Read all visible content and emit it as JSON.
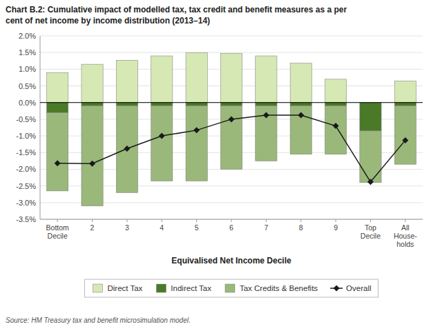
{
  "chart_data": {
    "type": "bar",
    "title": "Chart B.2: Cumulative impact of modelled tax, tax credit and benefit measures as a per\ncent of net income by income distribution (2013–14)",
    "x_label": "Equivalised Net Income Decile",
    "source": "Source: HM Treasury tax and benefit microsimulation model.",
    "categories": [
      "Bottom\nDecile",
      "2",
      "3",
      "4",
      "5",
      "6",
      "7",
      "8",
      "9",
      "Top\nDecile",
      "All\nHouse-\nholds"
    ],
    "stacked": true,
    "grid": true,
    "legend": "bottom",
    "ylim": [
      -3.5,
      2.0
    ],
    "yticks": [
      {
        "value": -3.5,
        "label": "-3.5%"
      },
      {
        "value": -3.0,
        "label": "-3.0%"
      },
      {
        "value": -2.5,
        "label": "-2.5%"
      },
      {
        "value": -2.0,
        "label": "-2.0%"
      },
      {
        "value": -1.5,
        "label": "-1.5%"
      },
      {
        "value": -1.0,
        "label": "-1.0%"
      },
      {
        "value": -0.5,
        "label": "-0.5%"
      },
      {
        "value": 0.0,
        "label": "0.0%"
      },
      {
        "value": 0.5,
        "label": "0.5%"
      },
      {
        "value": 1.0,
        "label": "1.0%"
      },
      {
        "value": 1.5,
        "label": "1.5%"
      },
      {
        "value": 2.0,
        "label": "2.0%"
      }
    ],
    "series": [
      {
        "name": "Direct Tax",
        "type": "bar",
        "color": "#d6e8b4",
        "values": [
          0.9,
          1.15,
          1.27,
          1.4,
          1.5,
          1.47,
          1.4,
          1.18,
          0.7,
          0.0,
          0.65
        ]
      },
      {
        "name": "Indirect Tax",
        "type": "bar",
        "color": "#4a7a28",
        "values": [
          -0.3,
          -0.1,
          -0.1,
          -0.1,
          -0.1,
          -0.1,
          -0.1,
          -0.1,
          -0.1,
          -0.85,
          -0.1
        ]
      },
      {
        "name": "Tax Credits & Benefits",
        "type": "bar",
        "color": "#9ab87a",
        "values": [
          -2.35,
          -3.0,
          -2.6,
          -2.25,
          -2.25,
          -1.9,
          -1.65,
          -1.45,
          -1.45,
          -1.55,
          -1.75
        ]
      },
      {
        "name": "Overall",
        "type": "line",
        "color": "#1a1a1a",
        "marker": "diamond",
        "values": [
          -1.82,
          -1.83,
          -1.38,
          -1.0,
          -0.83,
          -0.5,
          -0.38,
          -0.38,
          -0.7,
          -2.38,
          -1.13
        ]
      }
    ]
  }
}
